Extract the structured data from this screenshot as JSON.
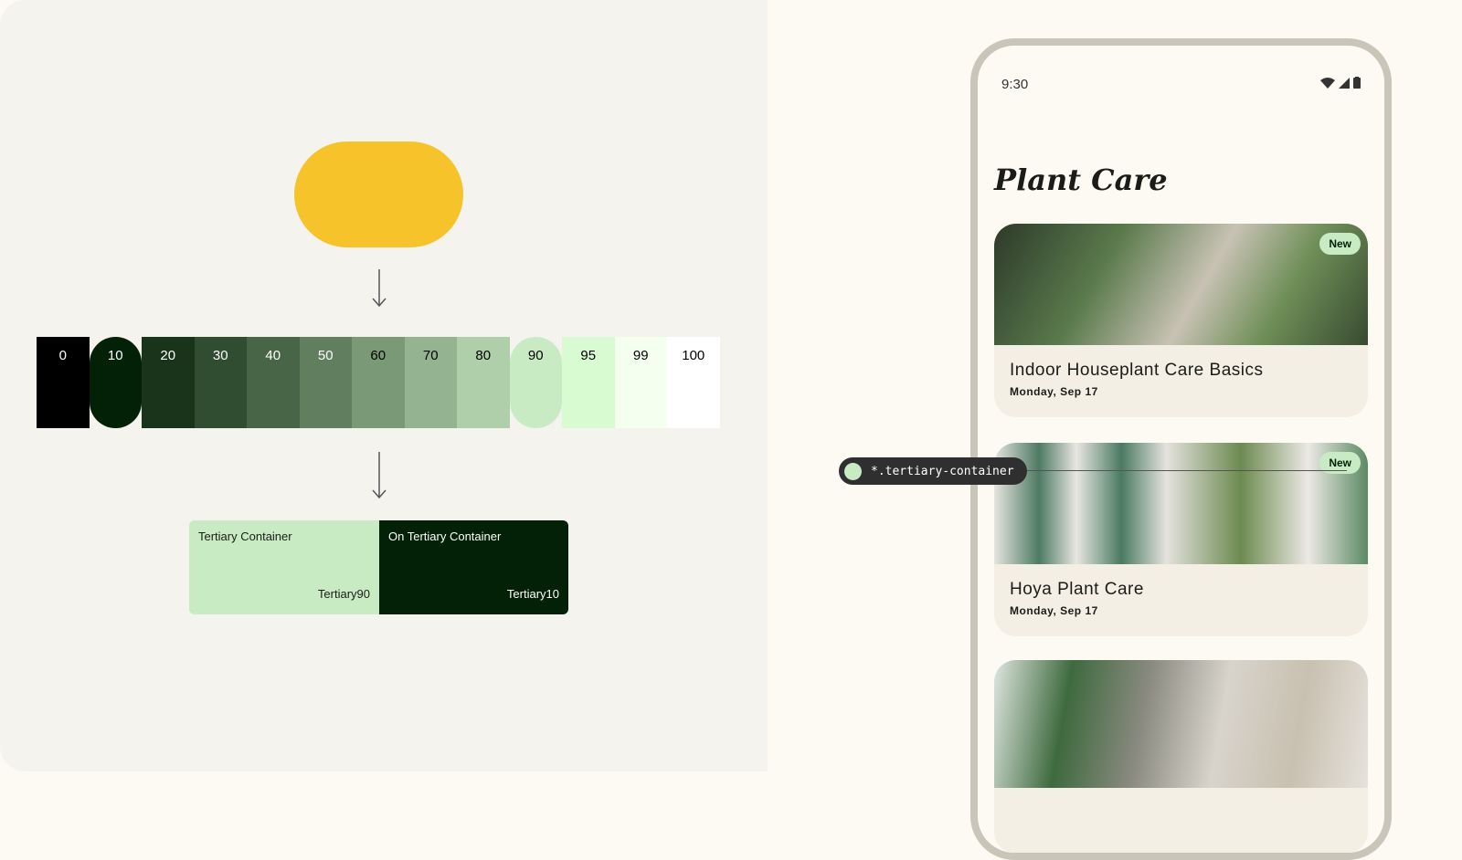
{
  "source_color": "#f7c32a",
  "palette": [
    {
      "tone": "0",
      "color": "#000000",
      "text": "#ffffff"
    },
    {
      "tone": "10",
      "color": "#022106",
      "text": "#ffffff",
      "highlight": true
    },
    {
      "tone": "20",
      "color": "#1a331b",
      "text": "#ffffff"
    },
    {
      "tone": "30",
      "color": "#304d31",
      "text": "#ffffff"
    },
    {
      "tone": "40",
      "color": "#486647",
      "text": "#ffffff"
    },
    {
      "tone": "50",
      "color": "#617f5f",
      "text": "#ffffff"
    },
    {
      "tone": "60",
      "color": "#7a9977",
      "text": "#000000"
    },
    {
      "tone": "70",
      "color": "#94b390",
      "text": "#000000"
    },
    {
      "tone": "80",
      "color": "#afcfaa",
      "text": "#000000"
    },
    {
      "tone": "90",
      "color": "#c9ebc4",
      "text": "#000000",
      "highlight": true
    },
    {
      "tone": "95",
      "color": "#d8fbd2",
      "text": "#000000"
    },
    {
      "tone": "99",
      "color": "#f5fff0",
      "text": "#000000"
    },
    {
      "tone": "100",
      "color": "#ffffff",
      "text": "#000000"
    }
  ],
  "roles": [
    {
      "label": "Tertiary Container",
      "tone": "Tertiary90",
      "color": "#c9ebc4",
      "text": "#1b1c18"
    },
    {
      "label": "On Tertiary Container",
      "tone": "Tertiary10",
      "color": "#022106",
      "text": "#ffffff"
    }
  ],
  "phone": {
    "time": "9:30",
    "title": "Plant Care",
    "cards": [
      {
        "title": "Indoor Houseplant Care Basics",
        "date": "Monday, Sep 17",
        "badge": "New"
      },
      {
        "title": "Hoya Plant Care",
        "date": "Monday, Sep 17",
        "badge": "New"
      },
      {
        "title": "",
        "date": "",
        "badge": ""
      }
    ]
  },
  "token_tag": "*.tertiary-container"
}
